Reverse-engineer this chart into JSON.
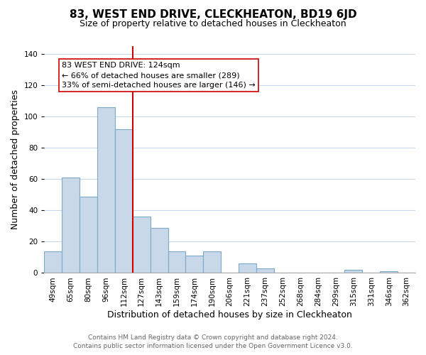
{
  "title": "83, WEST END DRIVE, CLECKHEATON, BD19 6JD",
  "subtitle": "Size of property relative to detached houses in Cleckheaton",
  "xlabel": "Distribution of detached houses by size in Cleckheaton",
  "ylabel": "Number of detached properties",
  "bar_labels": [
    "49sqm",
    "65sqm",
    "80sqm",
    "96sqm",
    "112sqm",
    "127sqm",
    "143sqm",
    "159sqm",
    "174sqm",
    "190sqm",
    "206sqm",
    "221sqm",
    "237sqm",
    "252sqm",
    "268sqm",
    "284sqm",
    "299sqm",
    "315sqm",
    "331sqm",
    "346sqm",
    "362sqm"
  ],
  "bar_values": [
    14,
    61,
    49,
    106,
    92,
    36,
    29,
    14,
    11,
    14,
    0,
    6,
    3,
    0,
    0,
    0,
    0,
    2,
    0,
    1,
    0
  ],
  "bar_color": "#c8d8e8",
  "bar_edge_color": "#7aaac8",
  "vline_index": 4.5,
  "vline_color": "#cc0000",
  "ylim": [
    0,
    145
  ],
  "yticks": [
    0,
    20,
    40,
    60,
    80,
    100,
    120,
    140
  ],
  "annotation_title": "83 WEST END DRIVE: 124sqm",
  "annotation_line1": "← 66% of detached houses are smaller (289)",
  "annotation_line2": "33% of semi-detached houses are larger (146) →",
  "annotation_box_color": "#ffffff",
  "annotation_box_edge": "#cc0000",
  "footer_line1": "Contains HM Land Registry data © Crown copyright and database right 2024.",
  "footer_line2": "Contains public sector information licensed under the Open Government Licence v3.0.",
  "title_fontsize": 11,
  "subtitle_fontsize": 9,
  "axis_label_fontsize": 9,
  "tick_fontsize": 7.5,
  "annotation_fontsize": 8,
  "footer_fontsize": 6.5,
  "background_color": "#ffffff",
  "grid_color": "#c8d8e8"
}
